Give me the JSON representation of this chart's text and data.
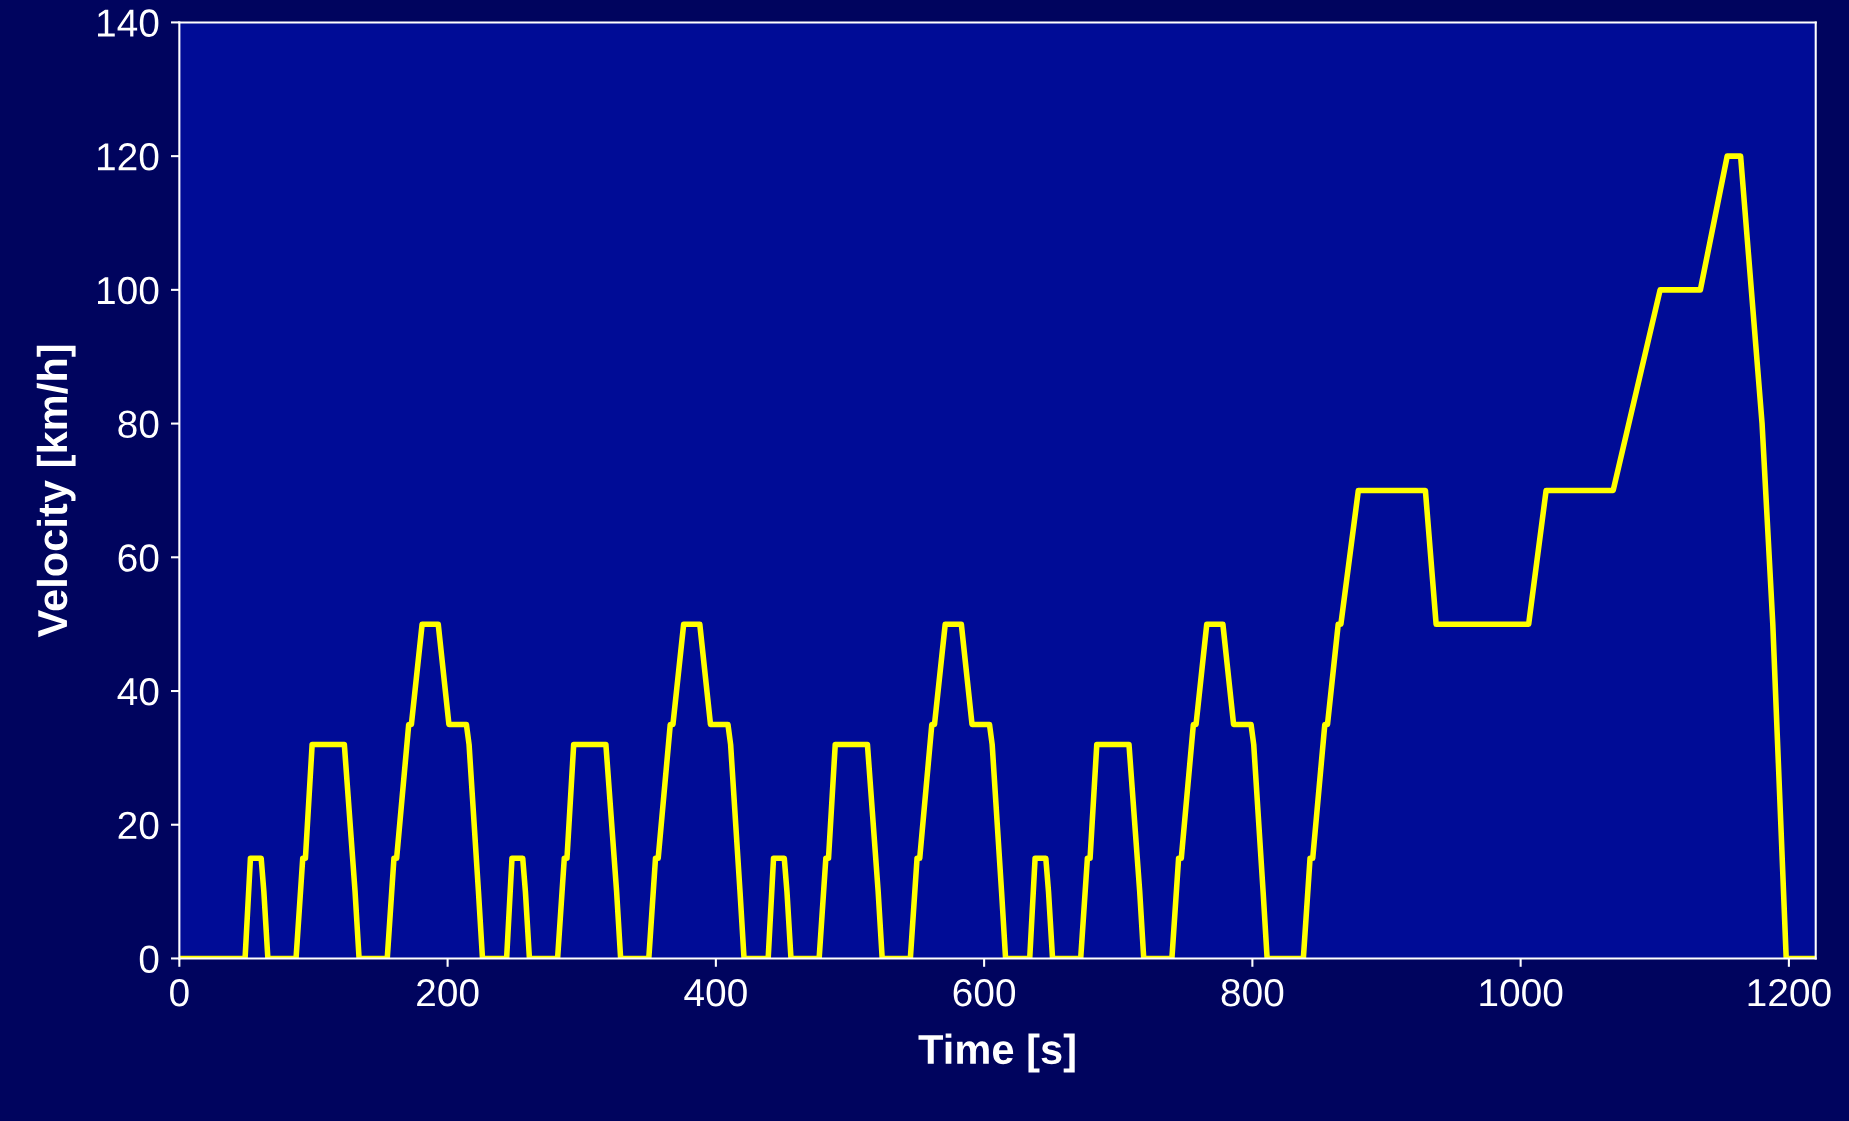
{
  "chart_data": {
    "type": "line",
    "xlabel": "Time [s]",
    "ylabel": "Velocity [km/h]",
    "series": [
      {
        "color": "#ffff00",
        "x": [
          0,
          49,
          53,
          61,
          63,
          66,
          87,
          92,
          94,
          99,
          123,
          131,
          134,
          155,
          160,
          162,
          171,
          173,
          181,
          193,
          201,
          214,
          216,
          223,
          226,
          233,
          244,
          248,
          256,
          258,
          261,
          282,
          287,
          289,
          294,
          318,
          326,
          329,
          350,
          355,
          357,
          366,
          368,
          376,
          388,
          396,
          409,
          411,
          418,
          421,
          428,
          439,
          443,
          451,
          453,
          456,
          477,
          482,
          484,
          489,
          513,
          521,
          524,
          545,
          550,
          552,
          561,
          563,
          571,
          583,
          591,
          604,
          606,
          613,
          616,
          623,
          634,
          638,
          646,
          648,
          651,
          672,
          677,
          679,
          684,
          708,
          716,
          719,
          740,
          745,
          747,
          756,
          758,
          766,
          778,
          786,
          799,
          801,
          808,
          811,
          818,
          838,
          843,
          845,
          854,
          856,
          864,
          866,
          879,
          929,
          937,
          1006,
          1019,
          1069,
          1104,
          1134,
          1154,
          1164,
          1180,
          1188,
          1198,
          1220
        ],
        "values": [
          0,
          0,
          15,
          15,
          10,
          0,
          0,
          15,
          15,
          32,
          32,
          10,
          0,
          0,
          15,
          15,
          35,
          35,
          50,
          50,
          35,
          35,
          32,
          10,
          0,
          0,
          0,
          15,
          15,
          10,
          0,
          0,
          15,
          15,
          32,
          32,
          10,
          0,
          0,
          15,
          15,
          35,
          35,
          50,
          50,
          35,
          35,
          32,
          10,
          0,
          0,
          0,
          15,
          15,
          10,
          0,
          0,
          15,
          15,
          32,
          32,
          10,
          0,
          0,
          15,
          15,
          35,
          35,
          50,
          50,
          35,
          35,
          32,
          10,
          0,
          0,
          0,
          15,
          15,
          10,
          0,
          0,
          15,
          15,
          32,
          32,
          10,
          0,
          0,
          15,
          15,
          35,
          35,
          50,
          50,
          35,
          35,
          32,
          10,
          0,
          0,
          0,
          15,
          15,
          35,
          35,
          50,
          50,
          70,
          70,
          50,
          50,
          70,
          70,
          100,
          100,
          120,
          120,
          80,
          50,
          0,
          0
        ]
      }
    ],
    "xlim": [
      0,
      1220
    ],
    "xticks": [
      0,
      200,
      400,
      600,
      800,
      1000,
      1200
    ],
    "ylim": [
      0,
      140
    ],
    "yticks": [
      0,
      20,
      40,
      60,
      80,
      100,
      120,
      140
    ],
    "grid": false,
    "legend": false,
    "marker": "none",
    "line_style": "solid"
  }
}
